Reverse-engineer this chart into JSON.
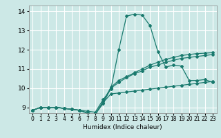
{
  "title": "",
  "xlabel": "Humidex (Indice chaleur)",
  "ylabel": "",
  "xlim": [
    -0.5,
    23.5
  ],
  "ylim": [
    8.7,
    14.3
  ],
  "yticks": [
    9,
    10,
    11,
    12,
    13,
    14
  ],
  "xticks": [
    0,
    1,
    2,
    3,
    4,
    5,
    6,
    7,
    8,
    9,
    10,
    11,
    12,
    13,
    14,
    15,
    16,
    17,
    18,
    19,
    20,
    21,
    22,
    23
  ],
  "bg_color": "#cce8e6",
  "grid_color": "#ffffff",
  "line_color": "#1a7a6e",
  "line1_x": [
    0,
    1,
    2,
    3,
    4,
    5,
    6,
    7,
    8,
    9,
    10,
    11,
    12,
    13,
    14,
    15,
    16,
    17,
    18,
    19,
    20,
    21,
    22,
    23
  ],
  "line1_y": [
    8.85,
    9.0,
    9.0,
    9.0,
    8.95,
    8.9,
    8.85,
    8.8,
    8.75,
    9.4,
    9.95,
    12.0,
    13.75,
    13.85,
    13.8,
    13.25,
    11.9,
    11.1,
    11.2,
    11.15,
    10.4,
    10.4,
    10.45,
    10.3
  ],
  "line2_x": [
    0,
    1,
    2,
    3,
    4,
    5,
    6,
    7,
    8,
    9,
    10,
    11,
    12,
    13,
    14,
    15,
    16,
    17,
    18,
    19,
    20,
    21,
    22,
    23
  ],
  "line2_y": [
    8.85,
    9.0,
    9.0,
    9.0,
    8.95,
    8.9,
    8.85,
    8.7,
    8.65,
    9.2,
    10.0,
    10.3,
    10.55,
    10.75,
    10.9,
    11.1,
    11.2,
    11.35,
    11.45,
    11.55,
    11.6,
    11.65,
    11.7,
    11.75
  ],
  "line3_x": [
    0,
    1,
    2,
    3,
    4,
    5,
    6,
    7,
    8,
    9,
    10,
    11,
    12,
    13,
    14,
    15,
    16,
    17,
    18,
    19,
    20,
    21,
    22,
    23
  ],
  "line3_y": [
    8.85,
    9.0,
    9.0,
    9.0,
    8.95,
    8.9,
    8.85,
    8.7,
    8.65,
    9.3,
    10.05,
    10.4,
    10.6,
    10.8,
    11.0,
    11.2,
    11.35,
    11.5,
    11.6,
    11.7,
    11.75,
    11.8,
    11.82,
    11.85
  ],
  "line4_x": [
    0,
    1,
    2,
    3,
    4,
    5,
    6,
    7,
    8,
    9,
    10,
    11,
    12,
    13,
    14,
    15,
    16,
    17,
    18,
    19,
    20,
    21,
    22,
    23
  ],
  "line4_y": [
    8.85,
    9.0,
    9.0,
    9.0,
    8.95,
    8.9,
    8.85,
    8.7,
    8.65,
    9.25,
    9.7,
    9.75,
    9.8,
    9.85,
    9.9,
    9.95,
    10.0,
    10.05,
    10.1,
    10.15,
    10.2,
    10.25,
    10.3,
    10.35
  ],
  "marker": "D",
  "markersize": 2.0,
  "linewidth": 0.9,
  "xlabel_fontsize": 6.5,
  "tick_labelsize": 5.5,
  "ytick_labelsize": 6.5
}
